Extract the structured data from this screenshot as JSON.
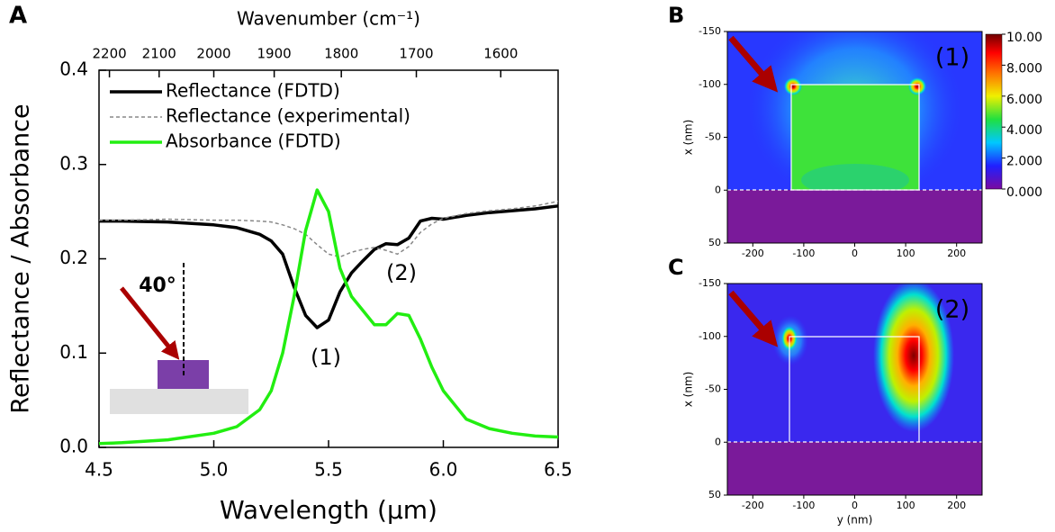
{
  "chart_data": [
    {
      "type": "line",
      "panel_label": "A",
      "xlabel": "Wavelength (μm)",
      "ylabel": "Reflectance / Absorbance",
      "x2label": "Wavenumber (cm⁻¹)",
      "x": [
        4.5,
        4.6,
        4.8,
        5.0,
        5.1,
        5.2,
        5.25,
        5.3,
        5.35,
        5.4,
        5.45,
        5.5,
        5.55,
        5.6,
        5.65,
        5.7,
        5.75,
        5.8,
        5.85,
        5.9,
        5.95,
        6.0,
        6.1,
        6.2,
        6.3,
        6.4,
        6.5
      ],
      "series": [
        {
          "name": "Reflectance (FDTD)",
          "color": "#000000",
          "style": "solid",
          "values": [
            0.24,
            0.24,
            0.239,
            0.236,
            0.233,
            0.226,
            0.219,
            0.205,
            0.17,
            0.14,
            0.127,
            0.135,
            0.165,
            0.185,
            0.198,
            0.21,
            0.216,
            0.215,
            0.222,
            0.24,
            0.243,
            0.242,
            0.246,
            0.249,
            0.251,
            0.253,
            0.256
          ]
        },
        {
          "name": "Reflectance (experimental)",
          "color": "#888888",
          "style": "dashed",
          "values": [
            0.241,
            0.241,
            0.242,
            0.241,
            0.241,
            0.24,
            0.239,
            0.236,
            0.232,
            0.226,
            0.215,
            0.205,
            0.202,
            0.207,
            0.21,
            0.212,
            0.209,
            0.205,
            0.213,
            0.228,
            0.237,
            0.243,
            0.248,
            0.251,
            0.253,
            0.256,
            0.261
          ]
        },
        {
          "name": "Absorbance (FDTD)",
          "color": "#22ee11",
          "style": "solid",
          "values": [
            0.004,
            0.005,
            0.008,
            0.015,
            0.022,
            0.04,
            0.06,
            0.1,
            0.16,
            0.23,
            0.273,
            0.25,
            0.19,
            0.16,
            0.145,
            0.13,
            0.13,
            0.142,
            0.14,
            0.115,
            0.085,
            0.06,
            0.03,
            0.02,
            0.015,
            0.012,
            0.011
          ]
        }
      ],
      "xlim": [
        4.5,
        6.5
      ],
      "xticks": [
        4.5,
        {
          "value": 5,
          "label": "5.0"
        },
        5.5,
        {
          "value": 6,
          "label": "6.0"
        },
        6.5
      ],
      "ylim": [
        0,
        0.4
      ],
      "yticks": [
        {
          "value": 0,
          "label": "0.0"
        },
        0.1,
        0.2,
        0.3,
        0.4
      ],
      "x2scale": "reciprocal",
      "x2lim": [
        2222.2,
        1538.5
      ],
      "x2ticks": [
        2200,
        2100,
        2000,
        1900,
        1800,
        1700,
        1600
      ],
      "legend": "upper left",
      "annotations": [
        "(1)",
        "(2)",
        "40°"
      ]
    },
    {
      "type": "heatmap",
      "panel_label": "B",
      "annotation": "(1)",
      "ylabel": "x (nm)",
      "xlim": [
        -250,
        250
      ],
      "xticks": [
        -200,
        -100,
        0,
        100,
        200
      ],
      "ylim": [
        50,
        -150
      ],
      "yticks": [
        50,
        0,
        -50,
        -100,
        -150
      ],
      "colorbar": {
        "lim": [
          0,
          10
        ],
        "ticks": [
          {
            "value": 0,
            "label": "0.000"
          },
          {
            "value": 2,
            "label": "2.000"
          },
          {
            "value": 4,
            "label": "4.000"
          },
          {
            "value": 6,
            "label": "6.000"
          },
          {
            "value": 8,
            "label": "8.000"
          },
          {
            "value": 10,
            "label": "10.00"
          }
        ]
      }
    },
    {
      "type": "heatmap",
      "panel_label": "C",
      "annotation": "(2)",
      "ylabel": "x (nm)",
      "xlabel": "y (nm)",
      "xlim": [
        -250,
        250
      ],
      "xticks": [
        -200,
        -100,
        0,
        100,
        200
      ],
      "ylim": [
        50,
        -150
      ],
      "yticks": [
        50,
        0,
        -50,
        -100,
        -150
      ]
    }
  ]
}
